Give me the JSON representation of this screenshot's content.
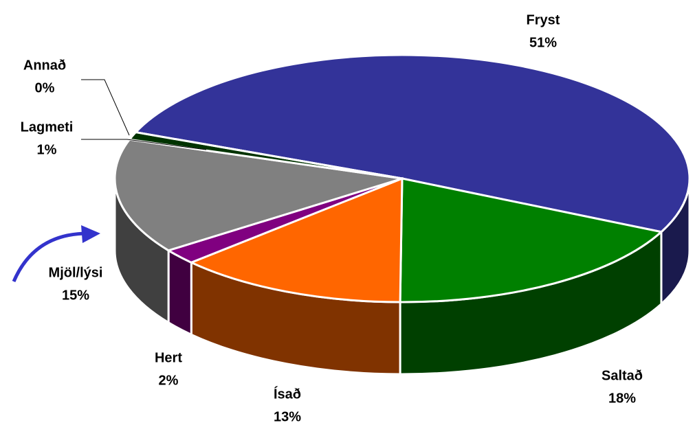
{
  "chart_data": {
    "type": "pie3d",
    "categories": [
      "Fryst",
      "Saltað",
      "Ísað",
      "Hert",
      "Mjöl/lýsi",
      "Lagmeti",
      "Annað"
    ],
    "values": [
      51,
      18,
      13,
      2,
      15,
      1,
      0
    ],
    "value_labels": [
      "51%",
      "18%",
      "13%",
      "2%",
      "15%",
      "1%",
      "0%"
    ],
    "colors": [
      "#333399",
      "#008000",
      "#ff6600",
      "#800080",
      "#808080",
      "#003300",
      "#000000"
    ]
  }
}
